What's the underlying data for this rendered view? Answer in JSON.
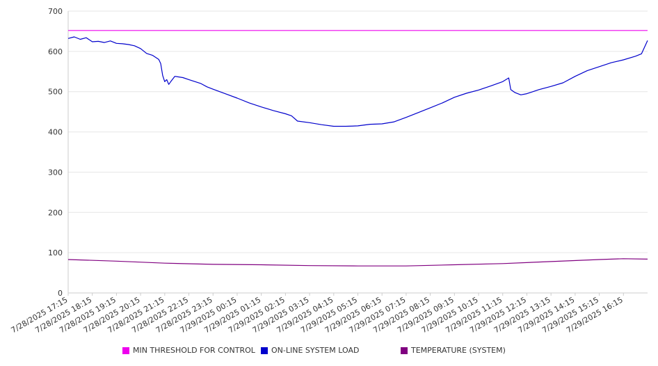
{
  "chart_data": {
    "type": "line",
    "title": "",
    "xlabel": "",
    "ylabel": "",
    "ylim": [
      0,
      700
    ],
    "yticks": [
      0,
      100,
      200,
      300,
      400,
      500,
      600,
      700
    ],
    "grid": true,
    "legend_position": "bottom",
    "x_tick_labels": [
      "7/28/2025 17:15",
      "7/28/2025 18:15",
      "7/28/2025 19:15",
      "7/28/2025 20:15",
      "7/28/2025 21:15",
      "7/28/2025 22:15",
      "7/28/2025 23:15",
      "7/29/2025 00:15",
      "7/29/2025 01:15",
      "7/29/2025 02:15",
      "7/29/2025 03:15",
      "7/29/2025 04:15",
      "7/29/2025 05:15",
      "7/29/2025 06:15",
      "7/29/2025 07:15",
      "7/29/2025 08:15",
      "7/29/2025 09:15",
      "7/29/2025 10:15",
      "7/29/2025 11:15",
      "7/29/2025 12:15",
      "7/29/2025 13:15",
      "7/29/2025 14:15",
      "7/29/2025 15:15",
      "7/29/2025 16:15"
    ],
    "series": [
      {
        "name": "MIN THRESHOLD FOR CONTROL",
        "color": "#ee00ee",
        "points": [
          [
            "7/28/2025 17:15",
            652
          ],
          [
            "7/29/2025 17:15",
            652
          ]
        ]
      },
      {
        "name": "ON-LINE SYSTEM LOAD",
        "color": "#0000cc",
        "points": [
          [
            "7/28/2025 17:15",
            632
          ],
          [
            "7/28/2025 17:30",
            636
          ],
          [
            "7/28/2025 17:45",
            630
          ],
          [
            "7/28/2025 18:00",
            634
          ],
          [
            "7/28/2025 18:15",
            624
          ],
          [
            "7/28/2025 18:30",
            625
          ],
          [
            "7/28/2025 18:45",
            622
          ],
          [
            "7/28/2025 19:00",
            626
          ],
          [
            "7/28/2025 19:15",
            620
          ],
          [
            "7/28/2025 19:30",
            619
          ],
          [
            "7/28/2025 19:45",
            617
          ],
          [
            "7/28/2025 20:00",
            614
          ],
          [
            "7/28/2025 20:15",
            607
          ],
          [
            "7/28/2025 20:30",
            595
          ],
          [
            "7/28/2025 20:45",
            590
          ],
          [
            "7/28/2025 21:00",
            580
          ],
          [
            "7/28/2025 21:05",
            570
          ],
          [
            "7/28/2025 21:10",
            540
          ],
          [
            "7/28/2025 21:15",
            525
          ],
          [
            "7/28/2025 21:20",
            530
          ],
          [
            "7/28/2025 21:25",
            518
          ],
          [
            "7/28/2025 21:30",
            525
          ],
          [
            "7/28/2025 21:40",
            538
          ],
          [
            "7/28/2025 22:00",
            535
          ],
          [
            "7/28/2025 22:15",
            530
          ],
          [
            "7/28/2025 22:45",
            520
          ],
          [
            "7/28/2025 23:00",
            512
          ],
          [
            "7/28/2025 23:15",
            506
          ],
          [
            "7/28/2025 23:45",
            495
          ],
          [
            "7/29/2025 00:15",
            484
          ],
          [
            "7/29/2025 00:45",
            472
          ],
          [
            "7/29/2025 01:15",
            462
          ],
          [
            "7/29/2025 01:45",
            453
          ],
          [
            "7/29/2025 02:15",
            445
          ],
          [
            "7/29/2025 02:30",
            440
          ],
          [
            "7/29/2025 02:45",
            427
          ],
          [
            "7/29/2025 03:15",
            423
          ],
          [
            "7/29/2025 03:45",
            418
          ],
          [
            "7/29/2025 04:15",
            414
          ],
          [
            "7/29/2025 04:45",
            414
          ],
          [
            "7/29/2025 05:15",
            415
          ],
          [
            "7/29/2025 05:45",
            419
          ],
          [
            "7/29/2025 06:15",
            420
          ],
          [
            "7/29/2025 06:45",
            425
          ],
          [
            "7/29/2025 07:15",
            436
          ],
          [
            "7/29/2025 07:45",
            448
          ],
          [
            "7/29/2025 08:15",
            460
          ],
          [
            "7/29/2025 08:45",
            472
          ],
          [
            "7/29/2025 09:15",
            486
          ],
          [
            "7/29/2025 09:45",
            496
          ],
          [
            "7/29/2025 10:15",
            504
          ],
          [
            "7/29/2025 10:45",
            514
          ],
          [
            "7/29/2025 11:15",
            525
          ],
          [
            "7/29/2025 11:30",
            534
          ],
          [
            "7/29/2025 11:35",
            505
          ],
          [
            "7/29/2025 11:45",
            498
          ],
          [
            "7/29/2025 12:00",
            492
          ],
          [
            "7/29/2025 12:15",
            495
          ],
          [
            "7/29/2025 12:45",
            505
          ],
          [
            "7/29/2025 13:15",
            513
          ],
          [
            "7/29/2025 13:45",
            522
          ],
          [
            "7/29/2025 14:15",
            538
          ],
          [
            "7/29/2025 14:45",
            552
          ],
          [
            "7/29/2025 15:15",
            562
          ],
          [
            "7/29/2025 15:45",
            572
          ],
          [
            "7/29/2025 16:15",
            579
          ],
          [
            "7/29/2025 16:45",
            588
          ],
          [
            "7/29/2025 17:00",
            594
          ],
          [
            "7/29/2025 17:15",
            627
          ]
        ]
      },
      {
        "name": "TEMPERATURE (SYSTEM)",
        "color": "#800080",
        "points": [
          [
            "7/28/2025 17:15",
            83
          ],
          [
            "7/28/2025 19:15",
            79
          ],
          [
            "7/28/2025 21:15",
            74
          ],
          [
            "7/28/2025 23:15",
            71
          ],
          [
            "7/29/2025 01:15",
            70
          ],
          [
            "7/29/2025 03:15",
            68
          ],
          [
            "7/29/2025 05:15",
            67
          ],
          [
            "7/29/2025 07:15",
            67
          ],
          [
            "7/29/2025 09:15",
            70
          ],
          [
            "7/29/2025 11:15",
            73
          ],
          [
            "7/29/2025 13:15",
            78
          ],
          [
            "7/29/2025 15:15",
            83
          ],
          [
            "7/29/2025 16:15",
            85
          ],
          [
            "7/29/2025 17:15",
            84
          ]
        ]
      }
    ]
  }
}
